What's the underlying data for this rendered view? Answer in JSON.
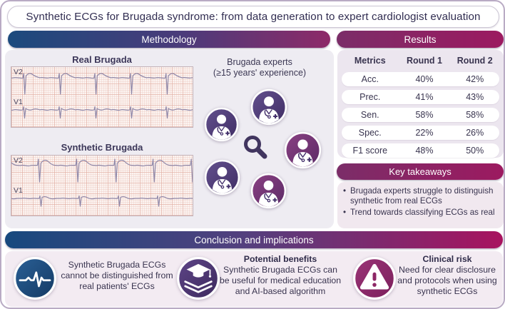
{
  "title": "Synthetic ECGs for Brugada syndrome: from data generation to expert cardiologist evaluation",
  "methodology": {
    "header": "Methodology",
    "real_label": "Real Brugada",
    "synthetic_label": "Synthetic Brugada",
    "lead_top": "V2",
    "lead_bottom": "V1",
    "experts_line1": "Brugada experts",
    "experts_line2": "(≥15 years' experience)"
  },
  "results": {
    "header": "Results",
    "table": {
      "columns": [
        "Metrics",
        "Round 1",
        "Round 2"
      ],
      "rows": [
        {
          "metric": "Acc.",
          "round1": "40%",
          "round2": "42%"
        },
        {
          "metric": "Prec.",
          "round1": "41%",
          "round2": "43%"
        },
        {
          "metric": "Sen.",
          "round1": "58%",
          "round2": "58%"
        },
        {
          "metric": "Spec.",
          "round1": "22%",
          "round2": "26%"
        },
        {
          "metric": "F1 score",
          "round1": "48%",
          "round2": "50%"
        }
      ]
    }
  },
  "key_takeaways": {
    "header": "Key takeaways",
    "bullets": [
      "Brugada experts struggle to distinguish synthetic from real ECGs",
      "Trend towards classifying ECGs as real"
    ]
  },
  "conclusion": {
    "header": "Conclusion and implications",
    "items": [
      {
        "icon": "heartbeat-icon",
        "title": "",
        "text": "Synthetic Brugada ECGs cannot be distinguished from real patients' ECGs"
      },
      {
        "icon": "graduation-cap-icon",
        "title": "Potential benefits",
        "text": "Synthetic Brugada ECGs can be useful for medical education and AI-based algorithm"
      },
      {
        "icon": "warning-icon",
        "title": "Clinical risk",
        "text": "Need for clear disclosure and protocols when using synthetic ECGs"
      }
    ]
  },
  "colors": {
    "banner_blue": "#1b4a7d",
    "banner_purple": "#4c3b7a",
    "banner_magenta": "#9c1a60",
    "panel_lavender": "#ece6ef",
    "ecg_grid_pink": "#e9c4bc",
    "ecg_trace": "#8f87a8",
    "doctor_purple": "#4e3873",
    "heartbeat_blue": "#1d4a7a",
    "warning_magenta": "#8d2766"
  }
}
